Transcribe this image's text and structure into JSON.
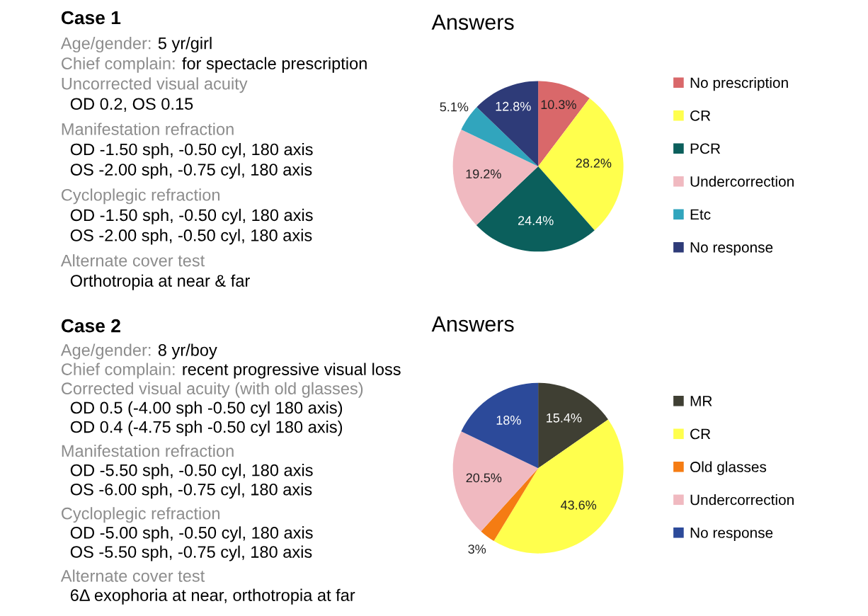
{
  "chart_data": [
    {
      "type": "other",
      "title": "Case 1",
      "annotations": [
        "Age/gender: 5 yr/girl",
        "Chief complain: for spectacle prescription",
        "Uncorrected visual acuity",
        "  OD 0.2, OS 0.15",
        "Manifestation refraction",
        "  OD -1.50 sph, -0.50 cyl, 180 axis",
        "  OS -2.00 sph, -0.75 cyl, 180 axis",
        "Cycloplegic refraction",
        "  OD -1.50 sph, -0.50 cyl, 180 axis",
        "  OS -2.00 sph, -0.50 cyl, 180 axis",
        "Alternate cover test",
        "  Orthotropia at near & far"
      ]
    },
    {
      "type": "pie",
      "title": "Answers",
      "legend": "right",
      "categories": [
        "No prescription",
        "CR",
        "PCR",
        "Undercorrection",
        "Etc",
        "No response"
      ],
      "values": [
        10.3,
        28.2,
        24.4,
        19.2,
        5.1,
        12.8
      ],
      "value_labels": [
        "10.3%",
        "28.2%",
        "24.4%",
        "19.2%",
        "5.1%",
        "12.8%"
      ],
      "colors": [
        "#d9686a",
        "#ffff4d",
        "#0b5f5c",
        "#f0b9c0",
        "#31a5bd",
        "#2e3b78"
      ]
    },
    {
      "type": "other",
      "title": "Case 2",
      "annotations": [
        "Age/gender: 8 yr/boy",
        "Chief complain: recent progressive visual loss",
        "Corrected visual acuity (with old glasses)",
        "  OD 0.5 (-4.00 sph -0.50 cyl 180 axis)",
        "  OD 0.4 (-4.75 sph -0.50 cyl 180 axis)",
        "Manifestation refraction",
        "  OD -5.50 sph, -0.50 cyl, 180 axis",
        "  OS -6.00 sph, -0.75 cyl, 180 axis",
        "Cycloplegic refraction",
        "  OD -5.00 sph, -0.50 cyl, 180 axis",
        "  OS -5.50 sph, -0.75 cyl, 180 axis",
        "Alternate cover test",
        "  6Δ exophoria at near, orthotropia at far"
      ]
    },
    {
      "type": "pie",
      "title": "Answers",
      "legend": "right",
      "categories": [
        "MR",
        "CR",
        "Old glasses",
        "Undercorrection",
        "No response"
      ],
      "values": [
        15.4,
        43.6,
        3,
        20.5,
        18
      ],
      "value_labels": [
        "15.4%",
        "43.6%",
        "3%",
        "20.5%",
        "18%"
      ],
      "colors": [
        "#3f3f33",
        "#ffff4d",
        "#f57c13",
        "#f0b9c0",
        "#2c4a9a"
      ]
    }
  ]
}
